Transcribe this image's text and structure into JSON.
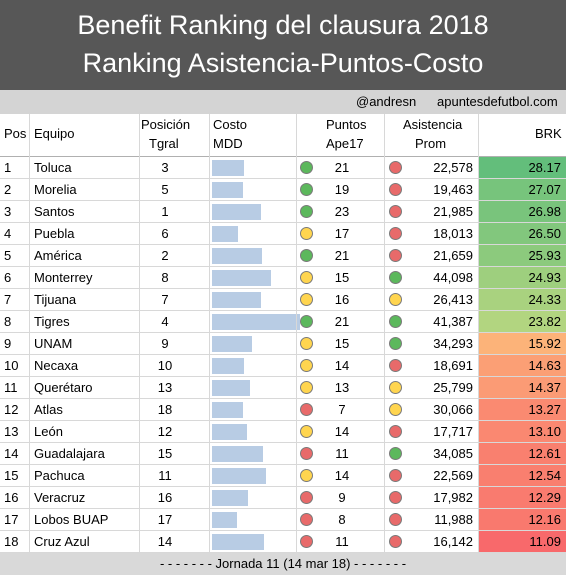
{
  "title": "Benefit Ranking del clausura 2018",
  "subtitle": "Ranking Asistencia-Puntos-Costo",
  "credit": {
    "handle": "@andresn",
    "site": "apuntesdefutbol.com"
  },
  "headers": {
    "pos": "Pos",
    "team": "Equipo",
    "tgral_1": "Posición",
    "tgral_2": "Tgral",
    "cost_1": "Costo",
    "cost_2": "MDD",
    "pts_1": "Puntos",
    "pts_2": "Ape17",
    "att_1": "Asistencia",
    "att_2": "Prom",
    "brk": "BRK"
  },
  "footer": "- - - - - - - Jornada 11 (14 mar 18) - - - - - - -",
  "colors": {
    "green": "#5cb85c",
    "yellow": "#ffd54f",
    "red": "#e86a6a",
    "cost_bar": "#b8cce4"
  },
  "chart_data": {
    "type": "table",
    "columns": [
      "Pos",
      "Equipo",
      "Posición Tgral",
      "Costo MDD",
      "Puntos Ape17",
      "Asistencia Prom",
      "BRK"
    ],
    "cost_scale_max": 1.0,
    "rows": [
      {
        "pos": "1",
        "team": "Toluca",
        "tgral": "3",
        "cost": 0.36,
        "pts": "21",
        "pts_status": "green",
        "att": "22,578",
        "att_status": "red",
        "brk": "28.17"
      },
      {
        "pos": "2",
        "team": "Morelia",
        "tgral": "5",
        "cost": 0.34,
        "pts": "19",
        "pts_status": "green",
        "att": "19,463",
        "att_status": "red",
        "brk": "27.07"
      },
      {
        "pos": "3",
        "team": "Santos",
        "tgral": "1",
        "cost": 0.54,
        "pts": "23",
        "pts_status": "green",
        "att": "21,985",
        "att_status": "red",
        "brk": "26.98"
      },
      {
        "pos": "4",
        "team": "Puebla",
        "tgral": "6",
        "cost": 0.29,
        "pts": "17",
        "pts_status": "yellow",
        "att": "18,013",
        "att_status": "red",
        "brk": "26.50"
      },
      {
        "pos": "5",
        "team": "América",
        "tgral": "2",
        "cost": 0.56,
        "pts": "21",
        "pts_status": "green",
        "att": "21,659",
        "att_status": "red",
        "brk": "25.93"
      },
      {
        "pos": "6",
        "team": "Monterrey",
        "tgral": "8",
        "cost": 0.65,
        "pts": "15",
        "pts_status": "yellow",
        "att": "44,098",
        "att_status": "green",
        "brk": "24.93"
      },
      {
        "pos": "7",
        "team": "Tijuana",
        "tgral": "7",
        "cost": 0.54,
        "pts": "16",
        "pts_status": "yellow",
        "att": "26,413",
        "att_status": "yellow",
        "brk": "24.33"
      },
      {
        "pos": "8",
        "team": "Tigres",
        "tgral": "4",
        "cost": 0.98,
        "pts": "21",
        "pts_status": "green",
        "att": "41,387",
        "att_status": "green",
        "brk": "23.82"
      },
      {
        "pos": "9",
        "team": "UNAM",
        "tgral": "9",
        "cost": 0.44,
        "pts": "15",
        "pts_status": "yellow",
        "att": "34,293",
        "att_status": "green",
        "brk": "15.92"
      },
      {
        "pos": "10",
        "team": "Necaxa",
        "tgral": "10",
        "cost": 0.36,
        "pts": "14",
        "pts_status": "yellow",
        "att": "18,691",
        "att_status": "red",
        "brk": "14.63"
      },
      {
        "pos": "11",
        "team": "Querétaro",
        "tgral": "13",
        "cost": 0.42,
        "pts": "13",
        "pts_status": "yellow",
        "att": "25,799",
        "att_status": "yellow",
        "brk": "14.37"
      },
      {
        "pos": "12",
        "team": "Atlas",
        "tgral": "18",
        "cost": 0.34,
        "pts": "7",
        "pts_status": "red",
        "att": "30,066",
        "att_status": "yellow",
        "brk": "13.27"
      },
      {
        "pos": "13",
        "team": "León",
        "tgral": "12",
        "cost": 0.39,
        "pts": "14",
        "pts_status": "yellow",
        "att": "17,717",
        "att_status": "red",
        "brk": "13.10"
      },
      {
        "pos": "14",
        "team": "Guadalajara",
        "tgral": "15",
        "cost": 0.57,
        "pts": "11",
        "pts_status": "red",
        "att": "34,085",
        "att_status": "green",
        "brk": "12.61"
      },
      {
        "pos": "15",
        "team": "Pachuca",
        "tgral": "11",
        "cost": 0.6,
        "pts": "14",
        "pts_status": "yellow",
        "att": "22,569",
        "att_status": "red",
        "brk": "12.54"
      },
      {
        "pos": "16",
        "team": "Veracruz",
        "tgral": "16",
        "cost": 0.4,
        "pts": "9",
        "pts_status": "red",
        "att": "17,982",
        "att_status": "red",
        "brk": "12.29"
      },
      {
        "pos": "17",
        "team": "Lobos BUAP",
        "tgral": "17",
        "cost": 0.28,
        "pts": "8",
        "pts_status": "red",
        "att": "11,988",
        "att_status": "red",
        "brk": "12.16"
      },
      {
        "pos": "18",
        "team": "Cruz Azul",
        "tgral": "14",
        "cost": 0.58,
        "pts": "11",
        "pts_status": "red",
        "att": "16,142",
        "att_status": "red",
        "brk": "11.09"
      }
    ]
  }
}
